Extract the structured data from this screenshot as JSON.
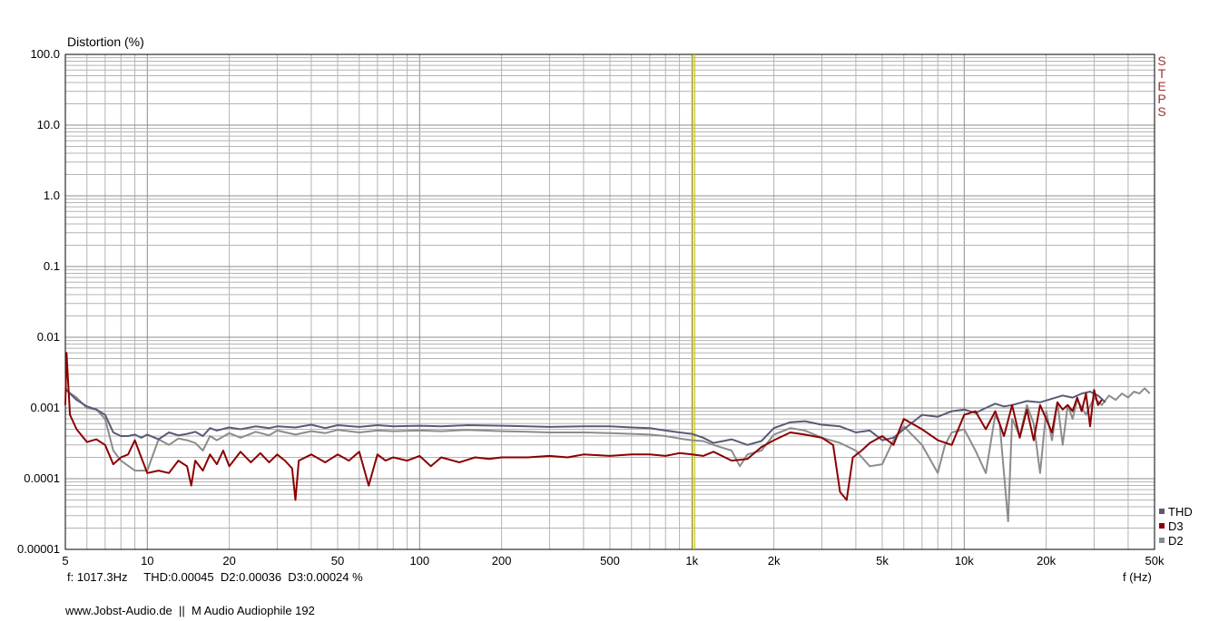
{
  "chart_data": {
    "type": "line",
    "ylabel": "Distortion (%)",
    "xlabel": "f (Hz)",
    "x_scale": "log",
    "y_scale": "log",
    "xlim": [
      5,
      50000
    ],
    "ylim": [
      1e-05,
      100
    ],
    "x_ticks": [
      {
        "value": 5,
        "label": "5"
      },
      {
        "value": 10,
        "label": "10"
      },
      {
        "value": 20,
        "label": "20"
      },
      {
        "value": 50,
        "label": "50"
      },
      {
        "value": 100,
        "label": "100"
      },
      {
        "value": 200,
        "label": "200"
      },
      {
        "value": 500,
        "label": "500"
      },
      {
        "value": 1000,
        "label": "1k"
      },
      {
        "value": 2000,
        "label": "2k"
      },
      {
        "value": 5000,
        "label": "5k"
      },
      {
        "value": 10000,
        "label": "10k"
      },
      {
        "value": 20000,
        "label": "20k"
      },
      {
        "value": 50000,
        "label": "50k"
      }
    ],
    "y_ticks": [
      {
        "value": 100,
        "label": "100.0"
      },
      {
        "value": 10,
        "label": "10.0"
      },
      {
        "value": 1,
        "label": "1.0"
      },
      {
        "value": 0.1,
        "label": "0.1"
      },
      {
        "value": 0.01,
        "label": "0.01"
      },
      {
        "value": 0.001,
        "label": "0.001"
      },
      {
        "value": 0.0001,
        "label": "0.0001"
      },
      {
        "value": 1e-05,
        "label": "0.00001"
      }
    ],
    "grid": true,
    "marker_frequency": 1017.3,
    "legend_position": "bottom-right",
    "series": [
      {
        "name": "THD",
        "color": "#5a5a78",
        "x": [
          5,
          5.2,
          5.5,
          6,
          6.5,
          7,
          7.5,
          8,
          8.5,
          9,
          9.5,
          10,
          11,
          12,
          13,
          14,
          15,
          16,
          17,
          18,
          20,
          22,
          25,
          28,
          30,
          35,
          40,
          45,
          50,
          60,
          70,
          80,
          100,
          120,
          150,
          200,
          250,
          300,
          400,
          500,
          600,
          700,
          800,
          900,
          1000,
          1100,
          1200,
          1400,
          1600,
          1800,
          2000,
          2300,
          2600,
          3000,
          3500,
          4000,
          4500,
          5000,
          5500,
          6000,
          7000,
          8000,
          9000,
          10000,
          11000,
          12000,
          13000,
          14000,
          15000,
          17000,
          19000,
          21000,
          23000,
          25000,
          27000,
          29000,
          31000,
          33000
        ],
        "y": [
          0.0019,
          0.0016,
          0.0013,
          0.00105,
          0.00095,
          0.0008,
          0.00045,
          0.0004,
          0.0004,
          0.00042,
          0.00038,
          0.00042,
          0.00036,
          0.00045,
          0.00041,
          0.00043,
          0.00046,
          0.0004,
          0.00052,
          0.00048,
          0.00053,
          0.0005,
          0.00055,
          0.00052,
          0.00055,
          0.00053,
          0.00058,
          0.00052,
          0.00057,
          0.00054,
          0.00057,
          0.00055,
          0.00056,
          0.00055,
          0.00057,
          0.00056,
          0.00055,
          0.00054,
          0.00055,
          0.00055,
          0.00053,
          0.00052,
          0.00048,
          0.00045,
          0.00043,
          0.00038,
          0.00032,
          0.00036,
          0.0003,
          0.00034,
          0.00052,
          0.00063,
          0.00065,
          0.00058,
          0.00055,
          0.00045,
          0.00048,
          0.00035,
          0.00038,
          0.0005,
          0.0008,
          0.00075,
          0.0009,
          0.00095,
          0.00085,
          0.001,
          0.00115,
          0.00105,
          0.0011,
          0.00125,
          0.0012,
          0.00135,
          0.0015,
          0.0014,
          0.0016,
          0.0017,
          0.0015,
          0.0012
        ]
      },
      {
        "name": "D3",
        "color": "#8b0000",
        "x": [
          5,
          5.05,
          5.2,
          5.5,
          6,
          6.5,
          7,
          7.5,
          8,
          8.5,
          9,
          9.5,
          10,
          11,
          12,
          13,
          14,
          14.5,
          15,
          16,
          17,
          18,
          19,
          20,
          22,
          24,
          26,
          28,
          30,
          32,
          34,
          35,
          36,
          40,
          45,
          50,
          55,
          60,
          65,
          70,
          75,
          80,
          90,
          100,
          110,
          120,
          140,
          160,
          180,
          200,
          250,
          300,
          350,
          400,
          500,
          600,
          700,
          800,
          900,
          1000,
          1100,
          1200,
          1400,
          1600,
          1800,
          2000,
          2300,
          2600,
          3000,
          3300,
          3500,
          3700,
          3900,
          4200,
          4500,
          5000,
          5500,
          6000,
          7000,
          8000,
          9000,
          10000,
          11000,
          12000,
          13000,
          14000,
          15000,
          16000,
          17000,
          18000,
          19000,
          20000,
          21000,
          22000,
          23000,
          24000,
          25000,
          26000,
          27000,
          28000,
          29000,
          30000,
          31000,
          32000
        ],
        "y": [
          0.0011,
          0.006,
          0.0008,
          0.0005,
          0.00033,
          0.00036,
          0.0003,
          0.00016,
          0.0002,
          0.00022,
          0.00035,
          0.0002,
          0.00012,
          0.00013,
          0.00012,
          0.00018,
          0.00015,
          8e-05,
          0.00018,
          0.00013,
          0.00022,
          0.00016,
          0.00025,
          0.00015,
          0.00024,
          0.00017,
          0.00023,
          0.00017,
          0.00022,
          0.00018,
          0.00014,
          5e-05,
          0.00018,
          0.00022,
          0.00017,
          0.00022,
          0.00018,
          0.00024,
          8e-05,
          0.00022,
          0.00018,
          0.0002,
          0.00018,
          0.00021,
          0.00015,
          0.0002,
          0.00017,
          0.0002,
          0.00019,
          0.0002,
          0.0002,
          0.00021,
          0.0002,
          0.00022,
          0.00021,
          0.00022,
          0.00022,
          0.00021,
          0.00023,
          0.00022,
          0.00021,
          0.00024,
          0.00018,
          0.00019,
          0.00028,
          0.00035,
          0.00045,
          0.00042,
          0.00038,
          0.0003,
          6.5e-05,
          5e-05,
          0.0002,
          0.00025,
          0.00032,
          0.0004,
          0.0003,
          0.0007,
          0.0005,
          0.00035,
          0.0003,
          0.0008,
          0.0009,
          0.0005,
          0.0009,
          0.0004,
          0.0011,
          0.00038,
          0.00095,
          0.00035,
          0.0011,
          0.0007,
          0.00045,
          0.0012,
          0.00095,
          0.0011,
          0.0009,
          0.0014,
          0.0009,
          0.0016,
          0.00055,
          0.0018,
          0.0011,
          0.0013
        ]
      },
      {
        "name": "D2",
        "color": "#8c8c8c",
        "x": [
          5,
          5.5,
          6,
          6.5,
          7,
          7.5,
          8,
          9,
          10,
          11,
          12,
          13,
          14,
          15,
          16,
          17,
          18,
          20,
          22,
          25,
          28,
          30,
          35,
          40,
          45,
          50,
          60,
          70,
          80,
          100,
          120,
          150,
          200,
          250,
          300,
          400,
          500,
          600,
          700,
          800,
          900,
          1000,
          1100,
          1200,
          1400,
          1500,
          1600,
          1800,
          2000,
          2300,
          2600,
          3000,
          3500,
          4000,
          4500,
          5000,
          5500,
          6000,
          7000,
          8000,
          8500,
          9000,
          10000,
          11000,
          12000,
          13000,
          13500,
          14000,
          14500,
          15000,
          16000,
          17000,
          18000,
          19000,
          20000,
          21000,
          22000,
          23000,
          24000,
          25000,
          26000,
          28000,
          30000,
          32000,
          34000,
          36000,
          38000,
          40000,
          42000,
          44000,
          46000,
          48000
        ],
        "y": [
          0.0018,
          0.0014,
          0.001,
          0.00095,
          0.0007,
          0.00025,
          0.00018,
          0.00013,
          0.00013,
          0.00036,
          0.0003,
          0.00037,
          0.00035,
          0.00032,
          0.00025,
          0.0004,
          0.00035,
          0.00044,
          0.00038,
          0.00046,
          0.00041,
          0.00048,
          0.00042,
          0.00047,
          0.00044,
          0.00049,
          0.00045,
          0.00048,
          0.00047,
          0.00048,
          0.00047,
          0.00049,
          0.00047,
          0.00046,
          0.00045,
          0.00045,
          0.00044,
          0.00043,
          0.00042,
          0.0004,
          0.00037,
          0.00035,
          0.00034,
          0.0003,
          0.00025,
          0.00015,
          0.00022,
          0.00025,
          0.00042,
          0.00052,
          0.00048,
          0.00038,
          0.00032,
          0.00025,
          0.00015,
          0.00016,
          0.00035,
          0.00055,
          0.0003,
          0.00012,
          0.0003,
          0.00045,
          0.0005,
          0.00025,
          0.00012,
          0.0008,
          0.0006,
          0.00012,
          2.5e-05,
          0.0007,
          0.0004,
          0.0011,
          0.0006,
          0.00012,
          0.0009,
          0.00035,
          0.0012,
          0.0003,
          0.0011,
          0.0007,
          0.0013,
          0.0008,
          0.0014,
          0.0011,
          0.0015,
          0.0013,
          0.0016,
          0.0014,
          0.0017,
          0.0016,
          0.0019,
          0.0016
        ]
      }
    ]
  },
  "labels": {
    "ylabel": "Distortion (%)",
    "xlabel": "f (Hz)",
    "readout": "f: 1017.3Hz     THD:0.00045  D2:0.00036  D3:0.00024 %",
    "footer": "www.Jobst-Audio.de  ||  M Audio Audiophile 192",
    "steps_letters": [
      "S",
      "T",
      "E",
      "P",
      "S"
    ],
    "legend": [
      "THD",
      "D3",
      "D2"
    ]
  },
  "colors": {
    "grid": "#b4b4b4",
    "grid_major": "#8c8c8c",
    "marker_line": "#c8c800",
    "steps": "#a03030"
  }
}
